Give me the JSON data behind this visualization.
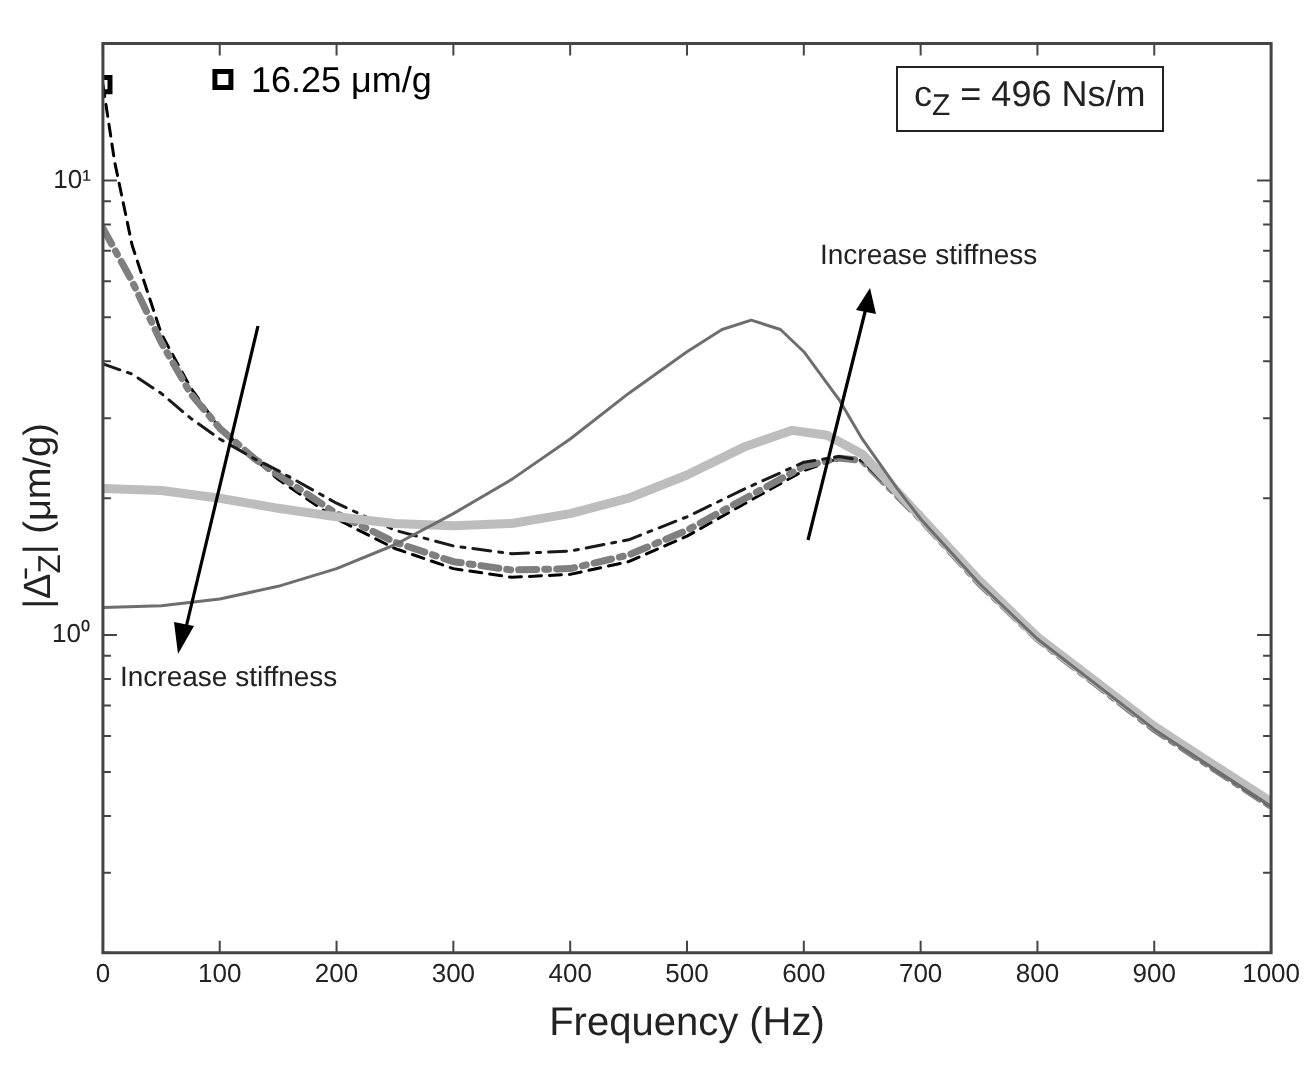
{
  "chart_data": {
    "type": "line",
    "xlabel": "Frequency (Hz)",
    "ylabel": "|Δ̄$_{Z}$| (μm/g)",
    "log": "y",
    "grid": false,
    "legend": "top left",
    "xlim": [
      0,
      1000
    ],
    "xticks": [
      0,
      100,
      200,
      300,
      400,
      500,
      600,
      700,
      800,
      900,
      1000
    ],
    "ylim": [
      0.2,
      20
    ],
    "yticks": [
      {
        "value": 0.2,
        "label": null
      },
      {
        "value": 0.3,
        "label": null
      },
      {
        "value": 0.4,
        "label": null
      },
      {
        "value": 0.5,
        "label": null
      },
      {
        "value": 0.6,
        "label": null
      },
      {
        "value": 0.7,
        "label": null
      },
      {
        "value": 0.8,
        "label": null
      },
      {
        "value": 0.9,
        "label": null
      },
      {
        "value": 1,
        "label": "10⁰"
      },
      {
        "value": 2,
        "label": null
      },
      {
        "value": 3,
        "label": null
      },
      {
        "value": 4,
        "label": null
      },
      {
        "value": 5,
        "label": null
      },
      {
        "value": 6,
        "label": null
      },
      {
        "value": 7,
        "label": null
      },
      {
        "value": 8,
        "label": null
      },
      {
        "value": 9,
        "label": null
      },
      {
        "value": 10,
        "label": "10¹"
      },
      {
        "value": 20,
        "label": null
      }
    ],
    "annotations": [
      "c$_{Z}$ = 496 Ns/m",
      "Increase stiffness",
      "Increase stiffness"
    ],
    "series": [
      {
        "color": "#6e6e6e",
        "line_style": "solid",
        "marker": "none",
        "x": [
          0,
          50,
          100,
          150,
          200,
          250,
          300,
          350,
          400,
          450,
          500,
          530,
          555,
          580,
          600,
          630,
          650,
          680,
          700,
          750,
          800,
          850,
          900,
          950,
          1000
        ],
        "values": [
          1.15,
          1.16,
          1.2,
          1.28,
          1.4,
          1.58,
          1.85,
          2.2,
          2.7,
          3.4,
          4.2,
          4.7,
          4.93,
          4.7,
          4.2,
          3.3,
          2.7,
          2.1,
          1.8,
          1.3,
          0.98,
          0.78,
          0.62,
          0.51,
          0.42
        ]
      },
      {
        "color": "#bdbdbd",
        "line_style": "solid",
        "marker": "none",
        "x": [
          0,
          50,
          100,
          150,
          200,
          250,
          300,
          350,
          400,
          450,
          500,
          550,
          590,
          620,
          650,
          700,
          750,
          800,
          850,
          900,
          950,
          1000
        ],
        "values": [
          2.1,
          2.08,
          2.0,
          1.9,
          1.82,
          1.76,
          1.74,
          1.76,
          1.85,
          2.0,
          2.25,
          2.6,
          2.82,
          2.75,
          2.5,
          1.82,
          1.32,
          0.99,
          0.79,
          0.63,
          0.52,
          0.43
        ]
      },
      {
        "color": "#1a1a1a",
        "line_style": "dashdot",
        "marker": "none",
        "x": [
          0,
          25,
          50,
          75,
          100,
          130,
          150,
          200,
          250,
          300,
          350,
          400,
          450,
          500,
          550,
          600,
          630,
          650,
          700,
          750,
          800,
          850,
          900,
          950,
          1000
        ],
        "values": [
          3.95,
          3.75,
          3.4,
          3.0,
          2.7,
          2.44,
          2.3,
          1.95,
          1.7,
          1.57,
          1.51,
          1.53,
          1.62,
          1.82,
          2.1,
          2.4,
          2.47,
          2.42,
          1.8,
          1.3,
          0.98,
          0.78,
          0.62,
          0.51,
          0.42
        ]
      },
      {
        "color": "#7f7f7f",
        "line_style": "dashdot",
        "marker": "none",
        "x": [
          0,
          25,
          50,
          75,
          100,
          130,
          150,
          200,
          250,
          300,
          350,
          400,
          450,
          500,
          550,
          600,
          630,
          650,
          700,
          750,
          800,
          850,
          900,
          950,
          1000
        ],
        "values": [
          7.85,
          6.0,
          4.4,
          3.4,
          2.85,
          2.44,
          2.25,
          1.85,
          1.6,
          1.45,
          1.39,
          1.4,
          1.5,
          1.7,
          2.0,
          2.35,
          2.45,
          2.42,
          1.8,
          1.3,
          0.98,
          0.78,
          0.62,
          0.51,
          0.42
        ]
      },
      {
        "color": "#000000",
        "line_style": "dashed",
        "marker": "none",
        "x": [
          0,
          10,
          25,
          50,
          75,
          100,
          130,
          150,
          200,
          250,
          300,
          350,
          400,
          450,
          500,
          550,
          600,
          630,
          650,
          700,
          750,
          800,
          850,
          900,
          950,
          1000
        ],
        "values": [
          16.25,
          11,
          7.2,
          4.6,
          3.5,
          2.85,
          2.44,
          2.2,
          1.8,
          1.55,
          1.4,
          1.34,
          1.36,
          1.45,
          1.65,
          1.95,
          2.3,
          2.45,
          2.42,
          1.8,
          1.3,
          0.98,
          0.78,
          0.62,
          0.51,
          0.42
        ]
      },
      {
        "type": "scatter",
        "name": "16.25 μm/g",
        "color": "#000000",
        "marker": "square",
        "x": [
          0
        ],
        "values": [
          16.25
        ]
      }
    ]
  }
}
